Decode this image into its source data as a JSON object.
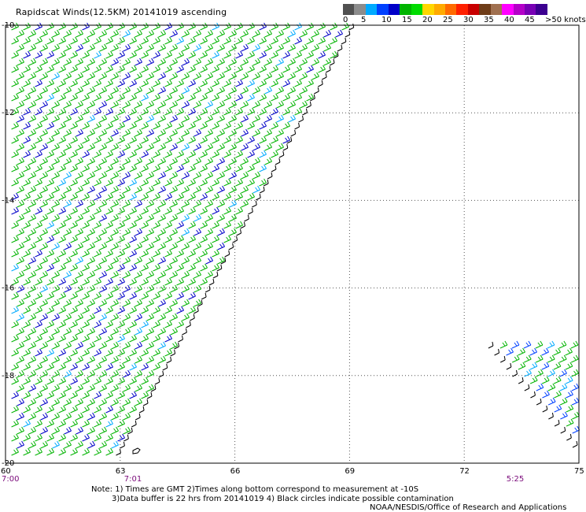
{
  "title": "Rapidscat Winds(12.5KM) 20141019 ascending",
  "legend": {
    "colors": [
      "#505050",
      "#8c8c8c",
      "#00aaff",
      "#0040ff",
      "#0000c8",
      "#00b400",
      "#00dc00",
      "#ffd700",
      "#ffaa00",
      "#ff6a00",
      "#ff2000",
      "#c80000",
      "#6e3c18",
      "#a07050",
      "#ff00ff",
      "#b400c8",
      "#7800b4",
      "#3c0090"
    ],
    "labels": [
      "0",
      "5",
      "10",
      "15",
      "20",
      "25",
      "30",
      "35",
      "40",
      "45",
      ">50 knots"
    ]
  },
  "axes": {
    "x_ticks": [
      "60",
      "63",
      "66",
      "69",
      "72",
      "75"
    ],
    "y_ticks": [
      "-10",
      "-12",
      "-14",
      "-16",
      "-18",
      "-20"
    ],
    "x_range": [
      60,
      75
    ],
    "y_range": [
      -20,
      -10
    ]
  },
  "times": [
    "7:00",
    "7:01",
    "5:25"
  ],
  "notes": {
    "line1": "Note: 1) Times are GMT 2)Times along bottom correspond to measurement at -10S",
    "line2": "3)Data buffer is 22 hrs from 20141019 4) Black circles indicate possible contamination",
    "line3": "NOAA/NESDIS/Office of Research and Applications"
  }
}
